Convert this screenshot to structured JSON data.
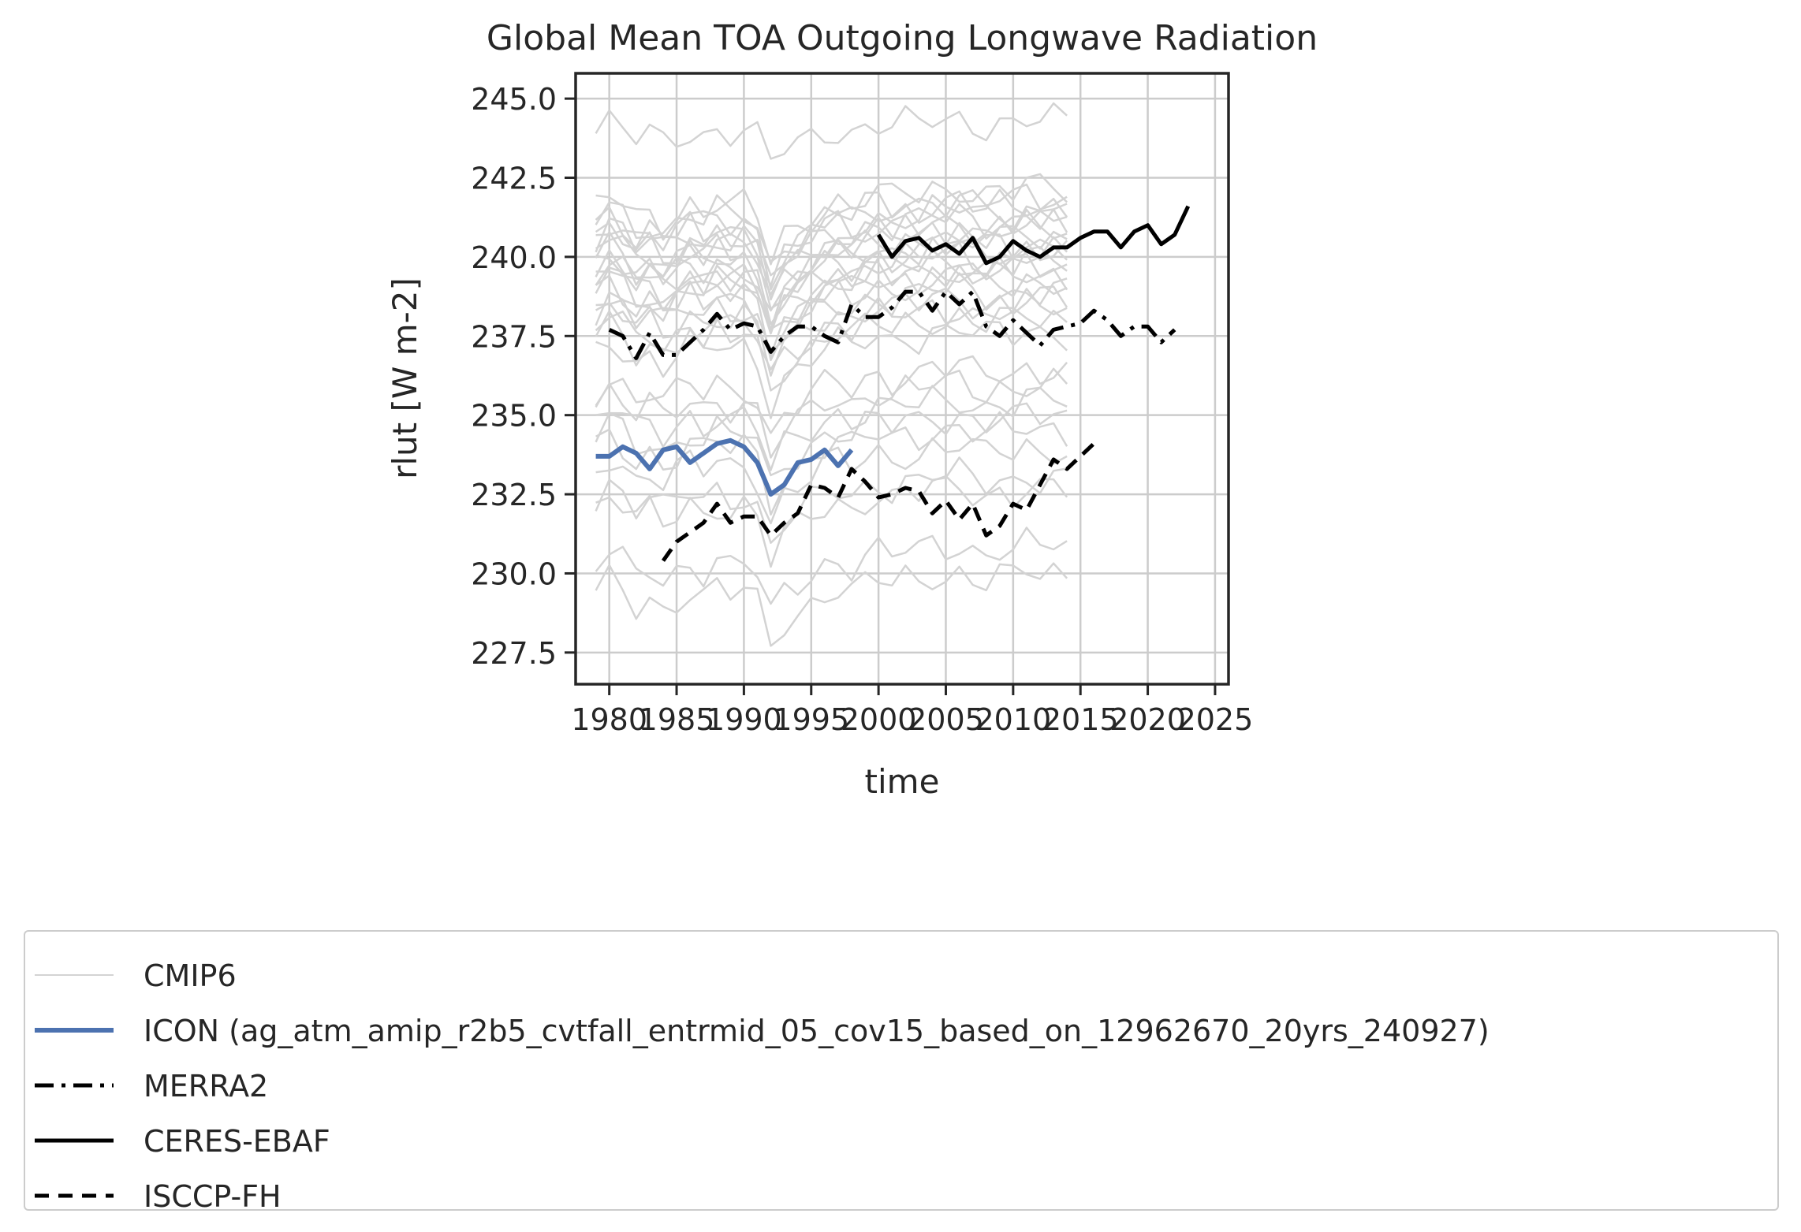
{
  "chart_data": {
    "type": "line",
    "title": "Global Mean TOA Outgoing Longwave Radiation",
    "xlabel": "time",
    "ylabel": "rlut [W m-2]",
    "xlim": [
      1977.5,
      2026
    ],
    "ylim": [
      226.5,
      245.8
    ],
    "xticks": [
      1980,
      1985,
      1990,
      1995,
      2000,
      2005,
      2010,
      2015,
      2020,
      2025
    ],
    "yticks": [
      227.5,
      230.0,
      232.5,
      235.0,
      237.5,
      240.0,
      242.5,
      245.0
    ],
    "xtick_labels": [
      "1980",
      "1985",
      "1990",
      "1995",
      "2000",
      "2005",
      "2010",
      "2015",
      "2020",
      "2025"
    ],
    "ytick_labels": [
      "227.5",
      "230.0",
      "232.5",
      "235.0",
      "237.5",
      "240.0",
      "242.5",
      "245.0"
    ],
    "grid": true,
    "legend_position": "bottom",
    "cmip6": {
      "name": "CMIP6",
      "color": "#d3d3d3",
      "years": [
        1979,
        1980,
        1981,
        1982,
        1983,
        1984,
        1985,
        1986,
        1987,
        1988,
        1989,
        1990,
        1991,
        1992,
        1993,
        1994,
        1995,
        1996,
        1997,
        1998,
        1999,
        2000,
        2001,
        2002,
        2003,
        2004,
        2005,
        2006,
        2007,
        2008,
        2009,
        2010,
        2011,
        2012,
        2013,
        2014
      ],
      "baselines": [
        243.9,
        241.5,
        241.2,
        241.0,
        240.8,
        240.6,
        240.4,
        240.2,
        240.0,
        239.8,
        239.6,
        239.4,
        239.2,
        239.0,
        238.8,
        238.6,
        238.3,
        238.0,
        237.7,
        237.4,
        237.0,
        235.8,
        235.3,
        234.8,
        234.3,
        233.9,
        233.3,
        232.4,
        232.0,
        230.2,
        229.3
      ],
      "shape": [
        0.0,
        0.45,
        0.15,
        -0.35,
        -0.05,
        -0.45,
        -0.15,
        0.2,
        -0.1,
        0.25,
        0.0,
        0.15,
        -0.25,
        -1.6,
        -0.8,
        -0.55,
        -0.2,
        0.1,
        0.25,
        0.05,
        0.35,
        0.5,
        0.3,
        0.55,
        0.45,
        0.7,
        0.6,
        0.75,
        0.55,
        0.45,
        0.65,
        0.5,
        0.75,
        0.6,
        0.7,
        0.55
      ]
    },
    "series": [
      {
        "name": "ICON (ag_atm_amip_r2b5_cvtfall_entrmid_05_cov15_based_on_12962670_20yrs_240927)",
        "color": "#4c72b0",
        "style": "solid",
        "x": [
          1979,
          1980,
          1981,
          1982,
          1983,
          1984,
          1985,
          1986,
          1987,
          1988,
          1989,
          1990,
          1991,
          1992,
          1993,
          1994,
          1995,
          1996,
          1997,
          1998
        ],
        "y": [
          233.7,
          233.7,
          234.0,
          233.8,
          233.3,
          233.9,
          234.0,
          233.5,
          233.8,
          234.1,
          234.2,
          234.0,
          233.5,
          232.5,
          232.8,
          233.5,
          233.6,
          233.9,
          233.4,
          233.9
        ]
      },
      {
        "name": "MERRA2",
        "color": "#000000",
        "style": "dashdot",
        "x": [
          1980,
          1981,
          1982,
          1983,
          1984,
          1985,
          1986,
          1987,
          1988,
          1989,
          1990,
          1991,
          1992,
          1993,
          1994,
          1995,
          1996,
          1997,
          1998,
          1999,
          2000,
          2001,
          2002,
          2003,
          2004,
          2005,
          2006,
          2007,
          2008,
          2009,
          2010,
          2011,
          2012,
          2013,
          2014,
          2015,
          2016,
          2017,
          2018,
          2019,
          2020,
          2021,
          2022
        ],
        "y": [
          237.7,
          237.5,
          236.8,
          237.6,
          236.9,
          236.9,
          237.3,
          237.7,
          238.2,
          237.7,
          237.9,
          237.8,
          237.0,
          237.5,
          237.8,
          237.8,
          237.5,
          237.3,
          238.5,
          238.1,
          238.1,
          238.4,
          238.9,
          238.9,
          238.3,
          238.9,
          238.5,
          238.9,
          237.8,
          237.5,
          238.0,
          237.6,
          237.2,
          237.7,
          237.8,
          237.9,
          238.3,
          238.0,
          237.5,
          237.8,
          237.8,
          237.3,
          237.7
        ]
      },
      {
        "name": "CERES-EBAF",
        "color": "#000000",
        "style": "solid",
        "x": [
          2000,
          2001,
          2002,
          2003,
          2004,
          2005,
          2006,
          2007,
          2008,
          2009,
          2010,
          2011,
          2012,
          2013,
          2014,
          2015,
          2016,
          2017,
          2018,
          2019,
          2020,
          2021,
          2022,
          2023
        ],
        "y": [
          240.7,
          240.0,
          240.5,
          240.6,
          240.2,
          240.4,
          240.1,
          240.6,
          239.8,
          240.0,
          240.5,
          240.2,
          240.0,
          240.3,
          240.3,
          240.6,
          240.8,
          240.8,
          240.3,
          240.8,
          241.0,
          240.4,
          240.7,
          241.6
        ]
      },
      {
        "name": "ISCCP-FH",
        "color": "#000000",
        "style": "dashed",
        "x": [
          1984,
          1985,
          1986,
          1987,
          1988,
          1989,
          1990,
          1991,
          1992,
          1993,
          1994,
          1995,
          1996,
          1997,
          1998,
          1999,
          2000,
          2001,
          2002,
          2003,
          2004,
          2005,
          2006,
          2007,
          2008,
          2009,
          2010,
          2011,
          2012,
          2013,
          2014,
          2015,
          2016
        ],
        "y": [
          230.4,
          231.0,
          231.3,
          231.6,
          232.2,
          231.6,
          231.8,
          231.8,
          231.2,
          231.6,
          231.9,
          232.8,
          232.7,
          232.4,
          233.3,
          232.9,
          232.4,
          232.5,
          232.7,
          232.6,
          231.9,
          232.3,
          231.7,
          232.2,
          231.2,
          231.5,
          232.2,
          232.0,
          232.8,
          233.6,
          233.3,
          233.7,
          234.1
        ]
      }
    ]
  }
}
